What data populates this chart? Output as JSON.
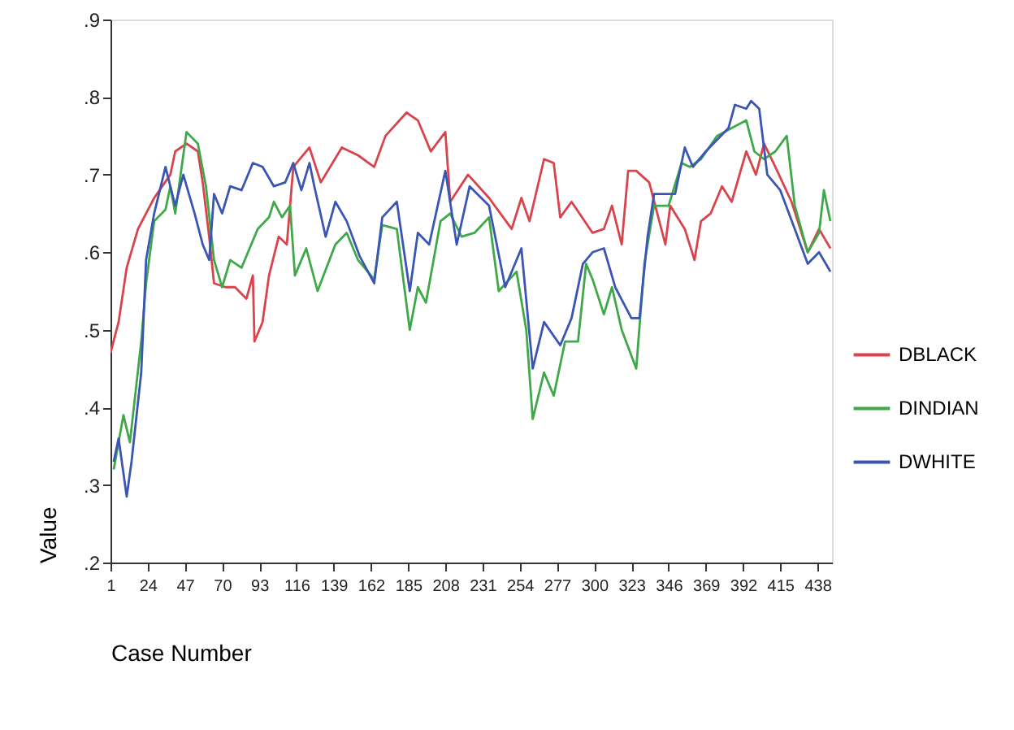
{
  "chart_data": {
    "type": "line",
    "xlabel": "Case Number",
    "ylabel": "Value",
    "xlim": [
      1,
      447
    ],
    "xticks": [
      1,
      24,
      47,
      70,
      93,
      116,
      139,
      162,
      185,
      208,
      231,
      254,
      277,
      300,
      323,
      346,
      369,
      392,
      415,
      438
    ],
    "ylim": [
      0.2,
      0.9
    ],
    "yticks": [
      {
        "value": 0.2,
        "label": ".2"
      },
      {
        "value": 0.3,
        "label": ".3"
      },
      {
        "value": 0.4,
        "label": ".4"
      },
      {
        "value": 0.5,
        "label": ".5"
      },
      {
        "value": 0.6,
        "label": ".6"
      },
      {
        "value": 0.7,
        "label": ".7"
      },
      {
        "value": 0.8,
        "label": ".8"
      },
      {
        "value": 0.9,
        "label": ".9"
      }
    ],
    "grid": false,
    "legend": "right",
    "line_style": "solid",
    "marker": "none",
    "series": [
      {
        "name": "DBLACK",
        "color": "#d9434b",
        "x": [
          1,
          6,
          11,
          18,
          28,
          38,
          41,
          48,
          55,
          58,
          62,
          65,
          72,
          78,
          85,
          89,
          90,
          95,
          99,
          105,
          110,
          114,
          124,
          131,
          144,
          154,
          164,
          171,
          184,
          191,
          199,
          208,
          211,
          222,
          235,
          249,
          255,
          260,
          269,
          275,
          279,
          286,
          299,
          306,
          311,
          317,
          321,
          326,
          334,
          339,
          344,
          347,
          356,
          362,
          366,
          372,
          379,
          385,
          394,
          400,
          405,
          412,
          422,
          432,
          439,
          446
        ],
        "values": [
          0.47,
          0.51,
          0.58,
          0.63,
          0.67,
          0.7,
          0.73,
          0.74,
          0.73,
          0.69,
          0.62,
          0.56,
          0.555,
          0.555,
          0.54,
          0.57,
          0.485,
          0.51,
          0.57,
          0.62,
          0.61,
          0.71,
          0.735,
          0.69,
          0.735,
          0.725,
          0.71,
          0.75,
          0.78,
          0.77,
          0.73,
          0.755,
          0.665,
          0.7,
          0.67,
          0.63,
          0.67,
          0.64,
          0.72,
          0.715,
          0.645,
          0.665,
          0.625,
          0.63,
          0.66,
          0.61,
          0.705,
          0.705,
          0.69,
          0.65,
          0.61,
          0.66,
          0.63,
          0.59,
          0.64,
          0.65,
          0.685,
          0.665,
          0.73,
          0.7,
          0.74,
          0.71,
          0.665,
          0.6,
          0.63,
          0.605
        ]
      },
      {
        "name": "DINDIAN",
        "color": "#3fa94a",
        "x": [
          3,
          6,
          9,
          13,
          20,
          23,
          28,
          35,
          38,
          41,
          45,
          48,
          55,
          60,
          65,
          70,
          75,
          82,
          87,
          92,
          99,
          102,
          107,
          112,
          115,
          122,
          129,
          140,
          147,
          154,
          164,
          169,
          178,
          186,
          191,
          196,
          205,
          211,
          218,
          226,
          235,
          241,
          252,
          258,
          262,
          269,
          275,
          282,
          290,
          295,
          299,
          306,
          311,
          317,
          326,
          331,
          337,
          346,
          354,
          359,
          366,
          376,
          385,
          394,
          399,
          405,
          412,
          419,
          424,
          432,
          439,
          442,
          446
        ],
        "values": [
          0.32,
          0.355,
          0.39,
          0.355,
          0.485,
          0.56,
          0.64,
          0.655,
          0.685,
          0.65,
          0.71,
          0.755,
          0.74,
          0.685,
          0.59,
          0.555,
          0.59,
          0.58,
          0.605,
          0.63,
          0.645,
          0.665,
          0.645,
          0.66,
          0.57,
          0.605,
          0.55,
          0.61,
          0.625,
          0.59,
          0.565,
          0.635,
          0.63,
          0.5,
          0.555,
          0.535,
          0.64,
          0.65,
          0.62,
          0.625,
          0.645,
          0.55,
          0.575,
          0.5,
          0.385,
          0.445,
          0.415,
          0.485,
          0.485,
          0.585,
          0.565,
          0.52,
          0.555,
          0.5,
          0.45,
          0.585,
          0.66,
          0.66,
          0.715,
          0.71,
          0.72,
          0.75,
          0.76,
          0.77,
          0.73,
          0.72,
          0.73,
          0.75,
          0.66,
          0.6,
          0.625,
          0.68,
          0.64
        ]
      },
      {
        "name": "DWHITE",
        "color": "#3a55b4",
        "x": [
          3,
          6,
          11,
          14,
          20,
          23,
          28,
          35,
          41,
          46,
          53,
          58,
          62,
          65,
          70,
          75,
          82,
          89,
          95,
          102,
          109,
          114,
          119,
          124,
          127,
          134,
          140,
          147,
          155,
          164,
          169,
          178,
          186,
          191,
          198,
          208,
          215,
          223,
          235,
          245,
          255,
          262,
          269,
          279,
          286,
          293,
          299,
          306,
          313,
          323,
          328,
          333,
          337,
          350,
          356,
          361,
          369,
          383,
          387,
          394,
          397,
          402,
          407,
          415,
          424,
          432,
          439,
          446
        ],
        "values": [
          0.33,
          0.36,
          0.285,
          0.33,
          0.445,
          0.59,
          0.65,
          0.71,
          0.66,
          0.7,
          0.65,
          0.61,
          0.59,
          0.675,
          0.65,
          0.685,
          0.68,
          0.715,
          0.71,
          0.685,
          0.69,
          0.715,
          0.68,
          0.715,
          0.685,
          0.62,
          0.665,
          0.64,
          0.595,
          0.56,
          0.645,
          0.665,
          0.55,
          0.625,
          0.61,
          0.705,
          0.61,
          0.685,
          0.66,
          0.555,
          0.605,
          0.45,
          0.51,
          0.48,
          0.515,
          0.585,
          0.6,
          0.605,
          0.555,
          0.515,
          0.515,
          0.62,
          0.675,
          0.675,
          0.735,
          0.71,
          0.73,
          0.76,
          0.79,
          0.785,
          0.795,
          0.785,
          0.7,
          0.68,
          0.63,
          0.585,
          0.6,
          0.575
        ]
      }
    ]
  }
}
